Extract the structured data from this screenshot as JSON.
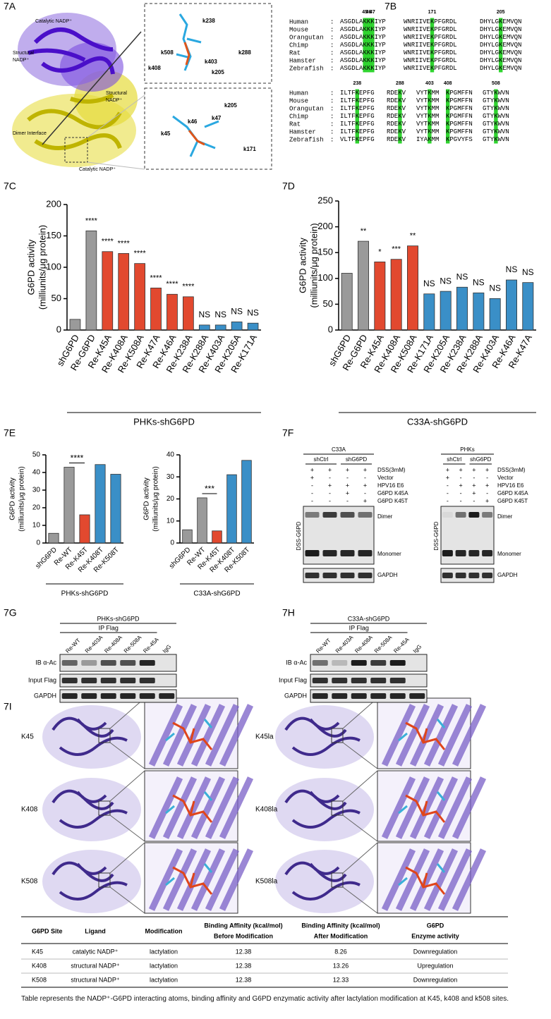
{
  "panel_labels": [
    "7A",
    "7B",
    "7C",
    "7D",
    "7E",
    "7F",
    "7G",
    "7H",
    "7I"
  ],
  "structure": {
    "labels": [
      [
        "Catalytic NADP⁺"
      ],
      [
        "Structural",
        "NADP⁺"
      ],
      [
        "Structural",
        "NADP⁺"
      ],
      [
        "Dimer Interface"
      ],
      [
        "Catalytic NADP⁺"
      ]
    ],
    "inset_top": [
      "k238",
      "k508",
      "k403",
      "k288",
      "k408",
      "k205"
    ],
    "inset_bottom": [
      "k205",
      "k46",
      "k47",
      "k45",
      "k171"
    ]
  },
  "alignment": {
    "separator": ":",
    "species": [
      "Human",
      "Mouse",
      "Orangutan",
      "Chimp",
      "Rat",
      "Hamster",
      "Zebrafish"
    ],
    "blocks": [
      {
        "positions": [
          [
            45,
            46,
            47
          ],
          [
            171
          ],
          [
            205
          ]
        ],
        "rows": [
          [
            [
              "ASGDLA",
              "KKK",
              "IYP"
            ],
            [
              "WNRIIVE",
              "K",
              "PFGRDL"
            ],
            [
              "DHYLG",
              "K",
              "EMVQN"
            ]
          ],
          [
            [
              "ASGDLA",
              "KKK",
              "IYP"
            ],
            [
              "WNRIIVE",
              "K",
              "PFGRDL"
            ],
            [
              "DHYLG",
              "K",
              "EMVQN"
            ]
          ],
          [
            [
              "ASGDLA",
              "KKK",
              "IYP"
            ],
            [
              "WNRIIVE",
              "K",
              "PFGRDL"
            ],
            [
              "DHYLG",
              "K",
              "EMVQN"
            ]
          ],
          [
            [
              "ASGDLA",
              "KKK",
              "IYP"
            ],
            [
              "WNRIIVE",
              "K",
              "PFGRDL"
            ],
            [
              "DHYLG",
              "K",
              "EMVQN"
            ]
          ],
          [
            [
              "ASGDLA",
              "KKK",
              "IYP"
            ],
            [
              "WNRIIVE",
              "K",
              "PFGRDL"
            ],
            [
              "DHYLG",
              "K",
              "EMVQN"
            ]
          ],
          [
            [
              "ASGDLA",
              "KKK",
              "IYP"
            ],
            [
              "WNRIIVE",
              "K",
              "PFGRDL"
            ],
            [
              "DHYLG",
              "K",
              "EMVQN"
            ]
          ],
          [
            [
              "ASGDLA",
              "KKK",
              "IYP"
            ],
            [
              "WNRIIVE",
              "K",
              "PFGRDL"
            ],
            [
              "DHYLG",
              "K",
              "EMVQN"
            ]
          ]
        ]
      },
      {
        "positions": [
          [
            238
          ],
          [
            288
          ],
          [
            403
          ],
          [
            408
          ],
          [
            508
          ]
        ],
        "rows": [
          [
            [
              "ILTF",
              "K",
              "EPFG"
            ],
            [
              "RDE",
              "K",
              "V"
            ],
            [
              "VYT",
              "K",
              "MM"
            ],
            [
              null,
              "K",
              "PGMFFN"
            ],
            [
              "GTY",
              "K",
              "WVN"
            ]
          ],
          [
            [
              "ILTF",
              "K",
              "EPFG"
            ],
            [
              "RDE",
              "K",
              "V"
            ],
            [
              "VYT",
              "K",
              "MM"
            ],
            [
              null,
              "K",
              "PGMFFN"
            ],
            [
              "GTY",
              "K",
              "WVN"
            ]
          ],
          [
            [
              "ILTF",
              "K",
              "EPFG"
            ],
            [
              "RDE",
              "K",
              "V"
            ],
            [
              "VYT",
              "K",
              "MM"
            ],
            [
              null,
              "K",
              "PGMFFN"
            ],
            [
              "GTY",
              "K",
              "WVN"
            ]
          ],
          [
            [
              "ILTF",
              "K",
              "EPFG"
            ],
            [
              "RDE",
              "K",
              "V"
            ],
            [
              "VYT",
              "K",
              "MM"
            ],
            [
              null,
              "K",
              "PGMFFN"
            ],
            [
              "GTY",
              "K",
              "WVN"
            ]
          ],
          [
            [
              "ILTF",
              "K",
              "EPFG"
            ],
            [
              "RDE",
              "K",
              "V"
            ],
            [
              "VYT",
              "K",
              "MM"
            ],
            [
              null,
              "K",
              "PGMFFN"
            ],
            [
              "GTY",
              "K",
              "WVN"
            ]
          ],
          [
            [
              "ILTF",
              "K",
              "EPFG"
            ],
            [
              "RDE",
              "K",
              "V"
            ],
            [
              "VYT",
              "K",
              "MM"
            ],
            [
              null,
              "K",
              "PGMFFN"
            ],
            [
              "GTY",
              "K",
              "WVN"
            ]
          ],
          [
            [
              "VLTF",
              "K",
              "EPFG"
            ],
            [
              "RDE",
              "K",
              "V"
            ],
            [
              "IYA",
              "K",
              "MM"
            ],
            [
              null,
              "K",
              "PGVYFS"
            ],
            [
              "GTY",
              "K",
              "WVN"
            ]
          ]
        ]
      }
    ]
  },
  "chart_data": [
    {
      "type": "bar",
      "ylabel": [
        "G6PD activity",
        "(milliunits/μg protein)"
      ],
      "xlabel": "PHKs-shG6PD",
      "categories": [
        "shG6PD",
        "Re-G6PD",
        "Re-K45A",
        "Re-K408A",
        "Re-K508A",
        "Re-K47A",
        "Re-K46A",
        "Re-K238A",
        "Re-K288A",
        "Re-K403A",
        "Re-K205A",
        "Re-K171A"
      ],
      "values": [
        17,
        158,
        125,
        122,
        106,
        67,
        57,
        53,
        8,
        8,
        13,
        11
      ],
      "colors": [
        "#9a9a9a",
        "#9a9a9a",
        "#e2492f",
        "#e2492f",
        "#e2492f",
        "#e2492f",
        "#e2492f",
        "#e2492f",
        "#3a8fc7",
        "#3a8fc7",
        "#3a8fc7",
        "#3a8fc7"
      ],
      "annotations": [
        null,
        "****",
        "****",
        "****",
        "****",
        "****",
        "****",
        "****",
        "NS",
        "NS",
        "NS",
        "NS"
      ],
      "ylim": [
        0,
        200
      ],
      "yticks": [
        0,
        50,
        100,
        150,
        200
      ]
    },
    {
      "type": "bar",
      "ylabel": [
        "G6PD activity",
        "(milliunits/μg protein)"
      ],
      "xlabel": "C33A-shG6PD",
      "categories": [
        "shG6PD",
        "Re-G6PD",
        "Re-K45A",
        "Re-K408A",
        "Re-K508A",
        "Re-K171A",
        "Re-K205A",
        "Re-K238A",
        "Re-K288A",
        "Re-K403A",
        "Re-K46A",
        "Re-K47A"
      ],
      "values": [
        110,
        172,
        132,
        137,
        163,
        70,
        75,
        83,
        72,
        61,
        97,
        92
      ],
      "colors": [
        "#9a9a9a",
        "#9a9a9a",
        "#e2492f",
        "#e2492f",
        "#e2492f",
        "#3a8fc7",
        "#3a8fc7",
        "#3a8fc7",
        "#3a8fc7",
        "#3a8fc7",
        "#3a8fc7",
        "#3a8fc7"
      ],
      "annotations": [
        null,
        "**",
        "*",
        "***",
        "**",
        "NS",
        "NS",
        "NS",
        "NS",
        "NS",
        "NS",
        "NS"
      ],
      "ylim": [
        0,
        250
      ],
      "yticks": [
        0,
        50,
        100,
        150,
        200,
        250
      ]
    },
    {
      "type": "bar",
      "ylabel": [
        "G6PD activity",
        "(milliunits/μg protein)"
      ],
      "xlabel": "PHKs-shG6PD",
      "categories": [
        "shG6PD",
        "Re-WT",
        "Re-K45T",
        "Re-K408T",
        "Re-K508T"
      ],
      "values": [
        5.5,
        43,
        16,
        44.5,
        39
      ],
      "colors": [
        "#9a9a9a",
        "#9a9a9a",
        "#e2492f",
        "#3a8fc7",
        "#3a8fc7"
      ],
      "annotations": [
        null,
        null,
        "****",
        null,
        null
      ],
      "bracket": true,
      "ylim": [
        0,
        50
      ],
      "yticks": [
        0,
        10,
        20,
        30,
        40,
        50
      ]
    },
    {
      "type": "bar",
      "ylabel": [
        "G6PD activity",
        "(milliunits/μg protein)"
      ],
      "xlabel": "C33A-shG6PD",
      "categories": [
        "shG6PD",
        "Re-WT",
        "Re-K45T",
        "Re-K408T",
        "Re-K508T"
      ],
      "values": [
        6,
        20.5,
        5.5,
        31,
        37.5
      ],
      "colors": [
        "#9a9a9a",
        "#9a9a9a",
        "#e2492f",
        "#3a8fc7",
        "#3a8fc7"
      ],
      "annotations": [
        null,
        null,
        "***",
        null,
        null
      ],
      "bracket": true,
      "ylim": [
        0,
        40
      ],
      "yticks": [
        0,
        10,
        20,
        30,
        40
      ]
    }
  ],
  "dimer_blots": {
    "rows": [
      "DSS(3mM)",
      "Vector",
      "HPV16 E6",
      "G6PD K45A",
      "G6PD K45T"
    ],
    "side_label": "DSS-G6PD",
    "band_labels": [
      "Dimer",
      "Monomer",
      "GAPDH"
    ],
    "panels": [
      {
        "cell": "C33A",
        "groups": [
          "shCtrl",
          "shG6PD"
        ],
        "signs": [
          [
            "+",
            "+",
            "+",
            "+"
          ],
          [
            "+",
            "-",
            "-",
            "-"
          ],
          [
            "-",
            "+",
            "+",
            "+"
          ],
          [
            "-",
            "-",
            "+",
            "-"
          ],
          [
            "-",
            "-",
            "-",
            "+"
          ]
        ]
      },
      {
        "cell": "PHKs",
        "groups": [
          "shCtrl",
          "shG6PD"
        ],
        "signs": [
          [
            "+",
            "+",
            "+",
            "+"
          ],
          [
            "+",
            "-",
            "-",
            "-"
          ],
          [
            "-",
            "+",
            "+",
            "+"
          ],
          [
            "-",
            "-",
            "+",
            "-"
          ],
          [
            "-",
            "-",
            "-",
            "+"
          ]
        ]
      }
    ]
  },
  "ip_blots": {
    "header": "IP Flag",
    "lanes": [
      "Re-WT",
      "Re-403A",
      "Re-408A",
      "Re-508A",
      "Re-45A",
      "IgG"
    ],
    "rows": [
      "IB α-Ac",
      "Input Flag",
      "GAPDH"
    ],
    "panels": [
      {
        "title": "PHKs-shG6PD"
      },
      {
        "title": "C33A-shG6PD"
      }
    ]
  },
  "docking": {
    "left": [
      "K45",
      "K408",
      "K508"
    ],
    "right": [
      "K45la",
      "K408la",
      "K508la"
    ]
  },
  "table": {
    "header": [
      [
        "G6PD Site"
      ],
      [
        "Ligand"
      ],
      [
        "Modification"
      ],
      [
        "Binding Affinity (kcal/mol)",
        "Before Modification"
      ],
      [
        "Binding Affinity (kcal/mol)",
        "After Modification"
      ],
      [
        "G6PD",
        "Enzyme  activity"
      ]
    ],
    "rows": [
      [
        "K45",
        "catalytic NADP⁺",
        "lactylation",
        12.38,
        8.26,
        "Downregulation"
      ],
      [
        "K408",
        "structural NADP⁺",
        "lactylation",
        12.38,
        13.26,
        "Upregulation"
      ],
      [
        "K508",
        "structural NADP⁺",
        "lactylation",
        12.38,
        12.33,
        "Downregulation"
      ]
    ],
    "caption": "Table represents the NADP⁺-G6PD interacting atoms, binding affinity and G6PD enzymatic activity after lactylation modification at K45, k408 and k508 sites."
  }
}
